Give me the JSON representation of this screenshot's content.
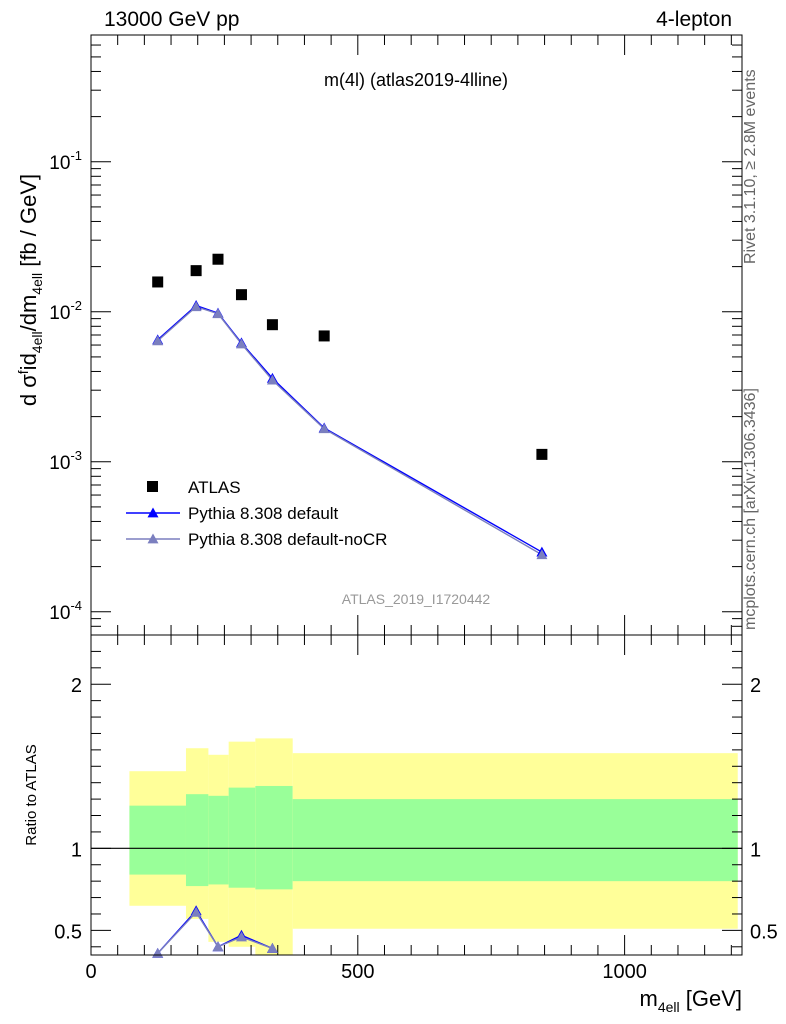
{
  "header": {
    "left": "13000 GeV pp",
    "right": "4-lepton"
  },
  "side": {
    "rivet": "Rivet 3.1.10, ≥ 2.8M events",
    "mcplots": "mcplots.cern.ch [arXiv:1306.3436]"
  },
  "chart_data": {
    "type": "scatter",
    "title": "m(4l) (atlas2019-4lline)",
    "watermark": "ATLAS_2019_I1720442",
    "xlabel": "m_{4ell} [GeV]",
    "ylabel": "dσᶠⁱd₄ₑₗₗ/dm₄ₑₗₗ [fb / GeV]",
    "ylabel_parts": {
      "main1": "d σ",
      "sup1": "f",
      "main2": "id",
      "sub1": "4ell",
      "main3": "/dm",
      "sub2": "4ell",
      "main4": " [fb / GeV]"
    },
    "xlabel_parts": {
      "main": "m",
      "sub": "4ell",
      "unit": " [GeV]"
    },
    "xlim": [
      0,
      1220
    ],
    "ylim": [
      7e-05,
      0.7
    ],
    "yscale": "log",
    "x_ticks": [
      "0",
      "500",
      "1000"
    ],
    "y_ticks": [
      {
        "base": "10",
        "exp": "-1",
        "value": 0.1
      },
      {
        "base": "10",
        "exp": "-2",
        "value": 0.01
      },
      {
        "base": "10",
        "exp": "-3",
        "value": 0.001
      },
      {
        "base": "10",
        "exp": "-4",
        "value": 0.0001
      }
    ],
    "legend_position": "bottom-left",
    "legend": [
      "ATLAS",
      "Pythia 8.308 default",
      "Pythia 8.308 default-noCR"
    ],
    "series": [
      {
        "name": "ATLAS",
        "marker": "square",
        "color": "#000000",
        "x": [
          125,
          197,
          238,
          282,
          340,
          437,
          845
        ],
        "y": [
          0.0158,
          0.0188,
          0.0224,
          0.013,
          0.0082,
          0.0069,
          0.00112
        ]
      },
      {
        "name": "Pythia 8.308 default",
        "marker": "triangle",
        "color": "#0000ff",
        "x": [
          125,
          197,
          238,
          282,
          340,
          437,
          845
        ],
        "y": [
          0.0065,
          0.011,
          0.0098,
          0.0062,
          0.0036,
          0.00168,
          0.00025
        ]
      },
      {
        "name": "Pythia 8.308 default-noCR",
        "marker": "triangle",
        "color": "#7b7fbf",
        "x": [
          125,
          197,
          238,
          282,
          340,
          437,
          845
        ],
        "y": [
          0.0064,
          0.0108,
          0.0097,
          0.0061,
          0.0035,
          0.00166,
          0.00024
        ]
      }
    ],
    "ratio": {
      "ylabel": "Ratio to ATLAS",
      "ylim": [
        0.35,
        2.3
      ],
      "ticks": [
        "0.5",
        "1",
        "2"
      ],
      "bands": [
        {
          "x0": 72,
          "x1": 178,
          "inner": [
            0.84,
            1.26
          ],
          "outer": [
            0.65,
            1.47
          ]
        },
        {
          "x0": 178,
          "x1": 220,
          "inner": [
            0.77,
            1.33
          ],
          "outer": [
            0.57,
            1.61
          ]
        },
        {
          "x0": 220,
          "x1": 258,
          "inner": [
            0.78,
            1.32
          ],
          "outer": [
            0.43,
            1.57
          ]
        },
        {
          "x0": 258,
          "x1": 308,
          "inner": [
            0.76,
            1.37
          ],
          "outer": [
            0.4,
            1.65
          ]
        },
        {
          "x0": 308,
          "x1": 378,
          "inner": [
            0.75,
            1.38
          ],
          "outer": [
            0.35,
            1.67
          ]
        },
        {
          "x0": 378,
          "x1": 1212,
          "inner": [
            0.8,
            1.3
          ],
          "outer": [
            0.51,
            1.58
          ]
        }
      ],
      "series": [
        {
          "name": "Pythia 8.308 default",
          "color": "#0000ff",
          "x": [
            125,
            197,
            238,
            282,
            340
          ],
          "y": [
            0.36,
            0.62,
            0.4,
            0.47,
            0.39
          ]
        },
        {
          "name": "Pythia 8.308 default-noCR",
          "color": "#7b7fbf",
          "x": [
            125,
            197,
            238,
            282,
            340
          ],
          "y": [
            0.36,
            0.61,
            0.4,
            0.46,
            0.39
          ]
        }
      ]
    }
  }
}
